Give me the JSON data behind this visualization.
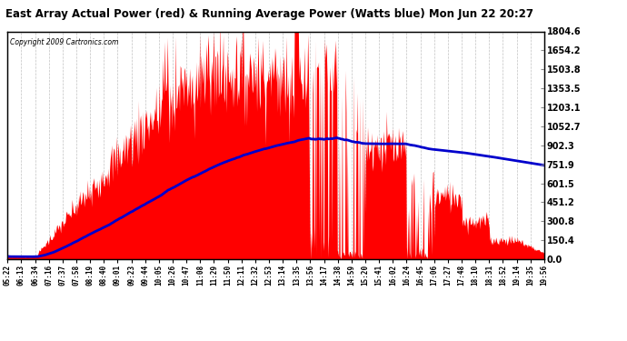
{
  "title": "East Array Actual Power (red) & Running Average Power (Watts blue) Mon Jun 22 20:27",
  "copyright": "Copyright 2009 Cartronics.com",
  "ylabel_right_values": [
    0.0,
    150.4,
    300.8,
    451.2,
    601.5,
    751.9,
    902.3,
    1052.7,
    1203.1,
    1353.5,
    1503.8,
    1654.2,
    1804.6
  ],
  "ymax": 1804.6,
  "ymin": 0.0,
  "background_color": "#ffffff",
  "red_color": "#ff0000",
  "blue_color": "#0000cc",
  "grid_color": "#bbbbbb",
  "x_labels": [
    "05:22",
    "06:13",
    "06:34",
    "07:16",
    "07:37",
    "07:58",
    "08:19",
    "08:40",
    "09:01",
    "09:23",
    "09:44",
    "10:05",
    "10:26",
    "10:47",
    "11:08",
    "11:29",
    "11:50",
    "12:11",
    "12:32",
    "12:53",
    "13:14",
    "13:35",
    "13:56",
    "14:17",
    "14:38",
    "14:59",
    "15:20",
    "15:41",
    "16:02",
    "16:24",
    "16:45",
    "17:06",
    "17:27",
    "17:48",
    "18:10",
    "18:31",
    "18:52",
    "19:14",
    "19:35",
    "19:56"
  ]
}
